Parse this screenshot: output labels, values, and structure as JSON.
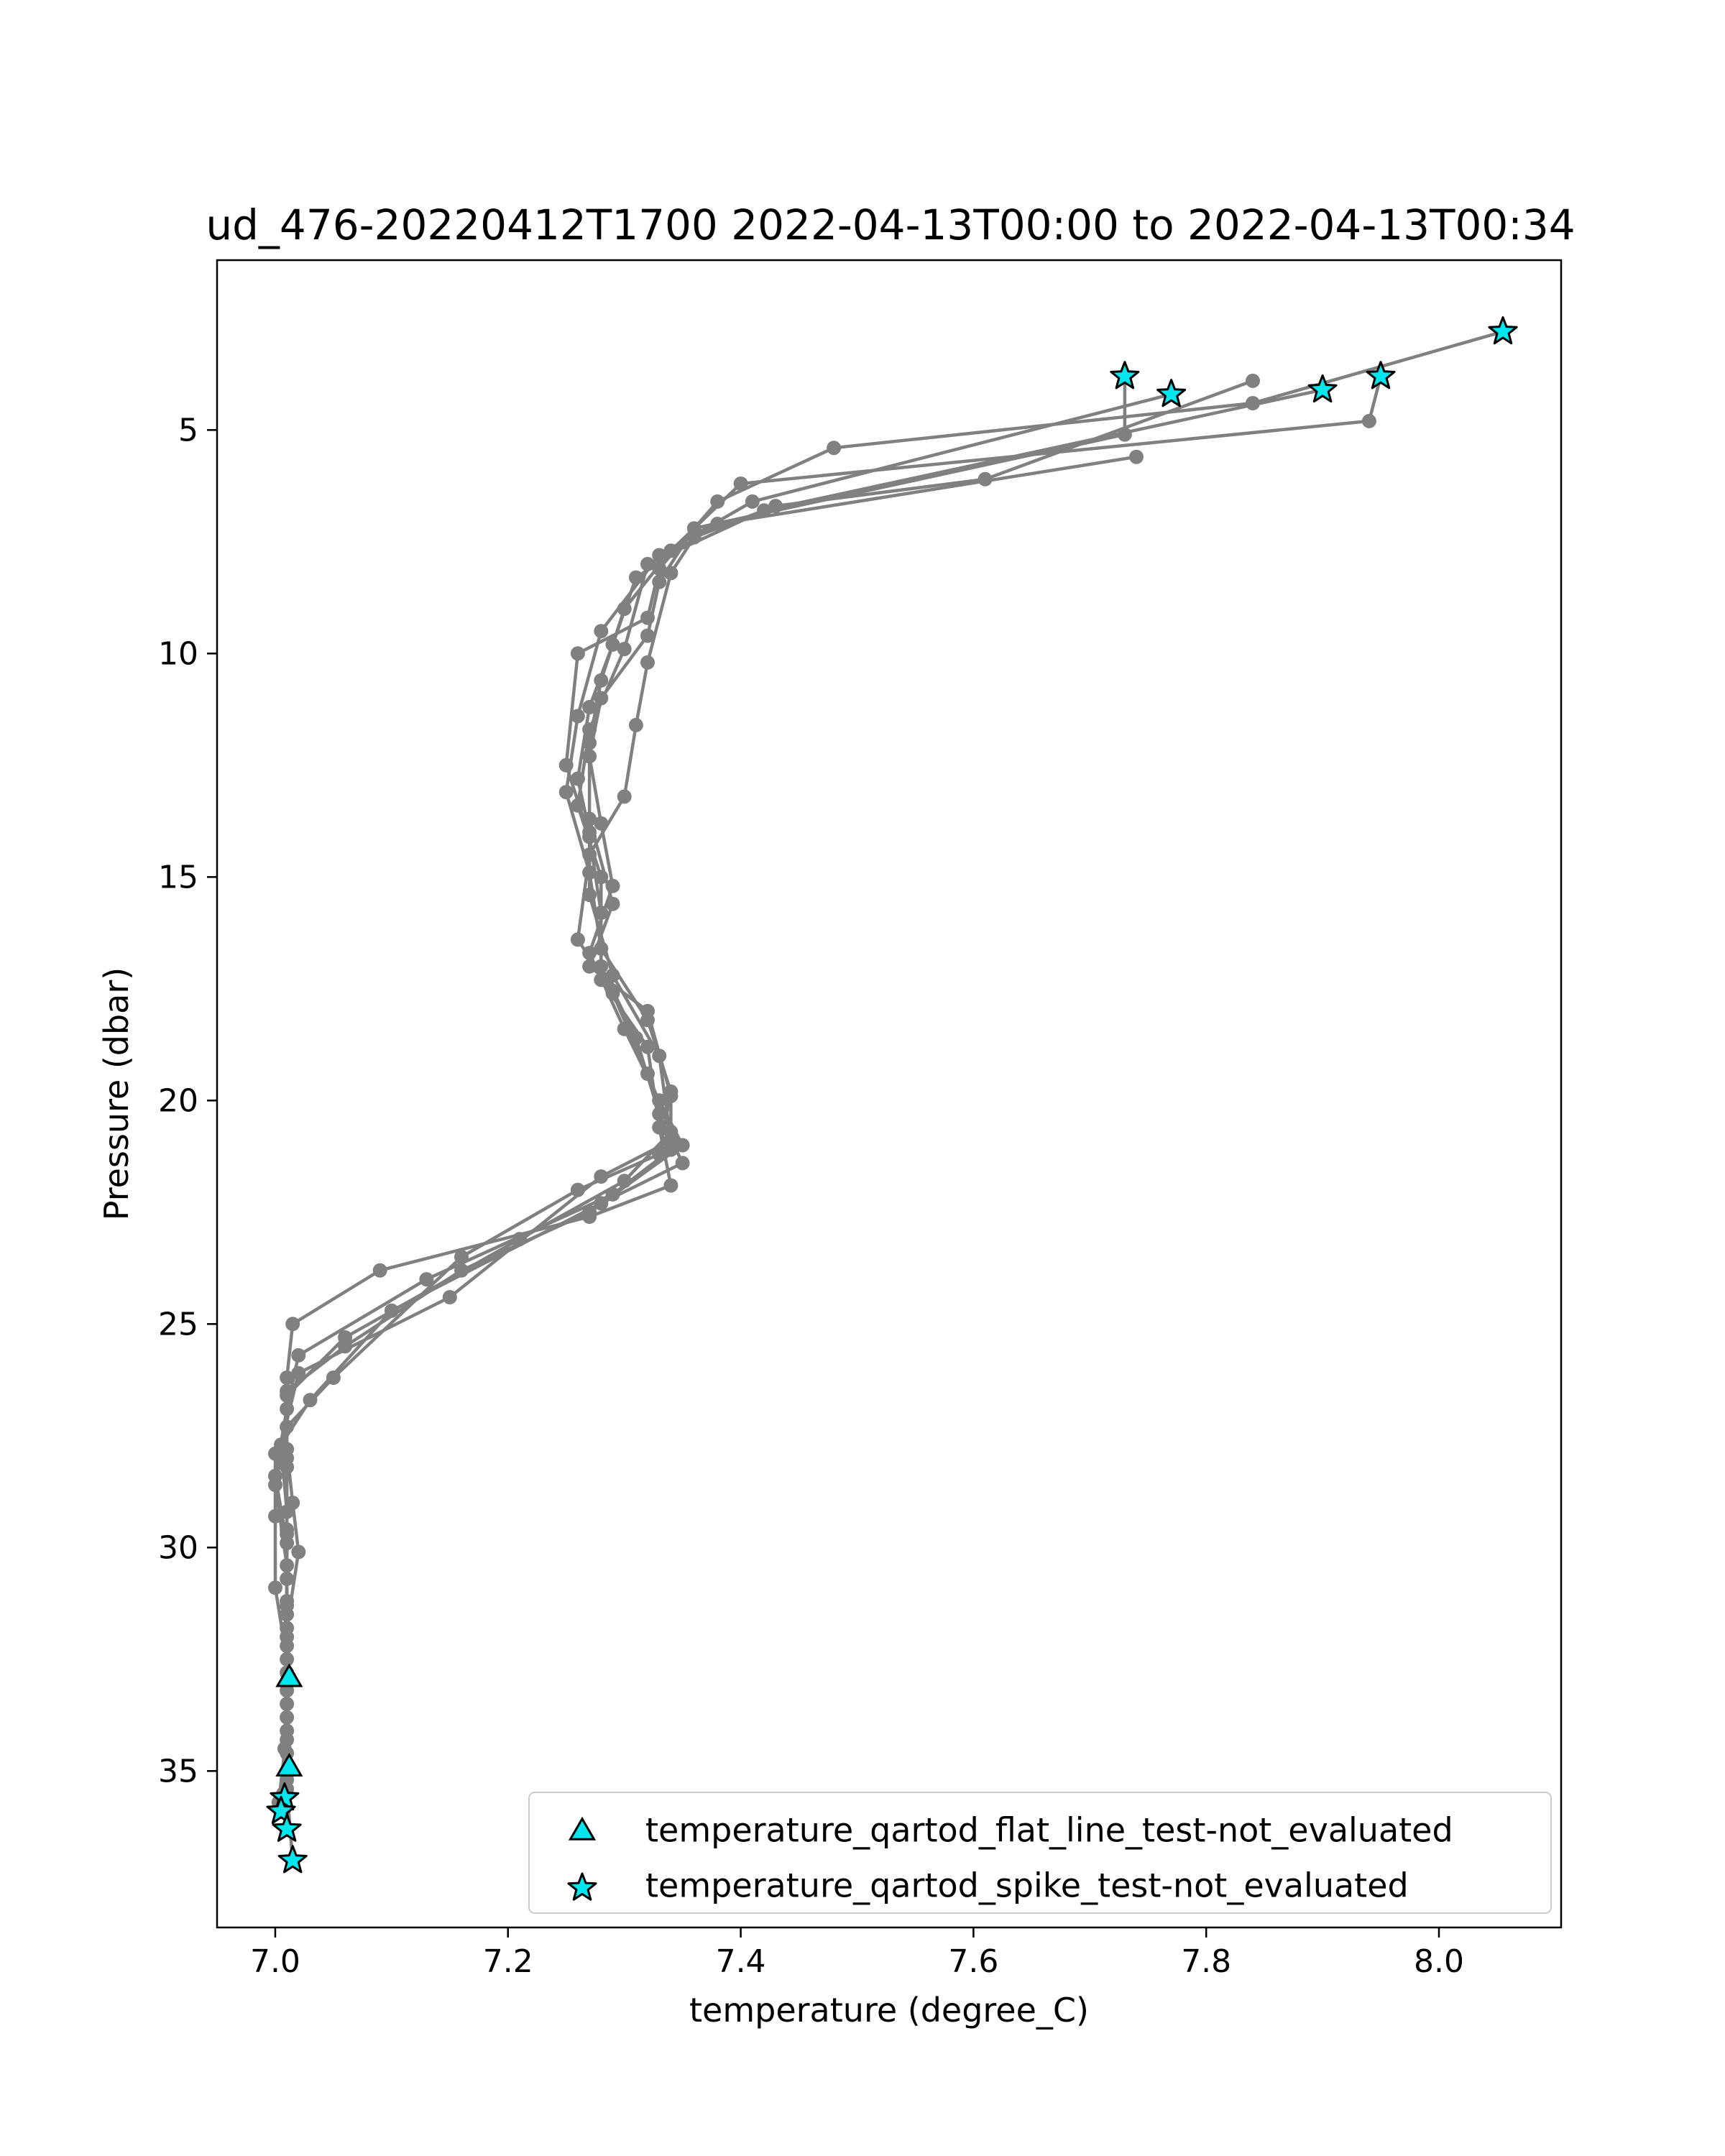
{
  "colors": {
    "line": "#808080",
    "marker_fill": "#00e5ee",
    "marker_edge": "#000000",
    "axes": "#000000",
    "background": "#ffffff"
  },
  "chart_data": {
    "type": "line",
    "title": "ud_476-20220412T1700 2022-04-13T00:00 to 2022-04-13T00:34",
    "xlabel": "temperature (degree_C)",
    "ylabel": "Pressure (dbar)",
    "xlim": [
      6.95,
      8.105
    ],
    "ylim": [
      38.5,
      1.2
    ],
    "y_inverted": true,
    "grid": false,
    "xticks": [
      7.0,
      7.2,
      7.4,
      7.6,
      7.8,
      8.0
    ],
    "xtick_labels": [
      "7.0",
      "7.2",
      "7.4",
      "7.6",
      "7.8",
      "8.0"
    ],
    "yticks": [
      5,
      10,
      15,
      20,
      25,
      30,
      35
    ],
    "ytick_labels": [
      "5",
      "10",
      "15",
      "20",
      "25",
      "30",
      "35"
    ],
    "legend_position": "lower-right",
    "legend": [
      {
        "label": "temperature_qartod_flat_line_test-not_evaluated",
        "marker": "triangle"
      },
      {
        "label": "temperature_qartod_spike_test-not_evaluated",
        "marker": "star"
      }
    ],
    "series": [
      {
        "points": [
          [
            7.73,
            3.8
          ],
          [
            7.73,
            5.1
          ],
          [
            7.36,
            7.2
          ],
          [
            7.33,
            8.4
          ],
          [
            7.32,
            9.6
          ],
          [
            7.28,
            11.0
          ],
          [
            7.27,
            12.3
          ],
          [
            7.28,
            13.8
          ],
          [
            7.29,
            15.2
          ],
          [
            7.27,
            16.7
          ],
          [
            7.3,
            18.4
          ],
          [
            7.33,
            20.0
          ],
          [
            7.35,
            21.0
          ],
          [
            7.27,
            22.5
          ],
          [
            7.16,
            23.8
          ],
          [
            7.06,
            25.5
          ],
          [
            7.01,
            26.5
          ],
          [
            7.01,
            28.0
          ],
          [
            7.01,
            29.6
          ],
          [
            7.01,
            31.2
          ],
          [
            7.012,
            32.9
          ],
          [
            7.008,
            34.5
          ],
          [
            7.005,
            35.9
          ]
        ]
      },
      {
        "points": [
          [
            7.77,
            4.2
          ],
          [
            7.41,
            6.6
          ],
          [
            7.33,
            7.8
          ],
          [
            7.28,
            9.5
          ],
          [
            7.26,
            11.4
          ],
          [
            7.25,
            13.1
          ],
          [
            7.27,
            14.9
          ],
          [
            7.28,
            16.6
          ],
          [
            7.32,
            18.2
          ],
          [
            7.34,
            19.8
          ],
          [
            7.33,
            21.2
          ],
          [
            7.26,
            22.0
          ],
          [
            7.16,
            23.5
          ],
          [
            7.05,
            26.2
          ],
          [
            7.01,
            27.3
          ],
          [
            7.0,
            28.6
          ],
          [
            7.01,
            30.4
          ],
          [
            7.01,
            32.0
          ],
          [
            7.01,
            33.5
          ],
          [
            7.012,
            35.0
          ],
          [
            7.01,
            36.3
          ]
        ]
      },
      {
        "points": [
          [
            7.9,
            4.1
          ],
          [
            7.42,
            6.8
          ],
          [
            7.32,
            8.0
          ],
          [
            7.3,
            9.9
          ],
          [
            7.27,
            11.7
          ],
          [
            7.26,
            13.4
          ],
          [
            7.28,
            15.0
          ],
          [
            7.28,
            17.0
          ],
          [
            7.31,
            18.6
          ],
          [
            7.33,
            20.3
          ],
          [
            7.35,
            21.4
          ],
          [
            7.28,
            22.3
          ],
          [
            7.1,
            24.7
          ],
          [
            7.03,
            26.7
          ],
          [
            7.0,
            27.9
          ],
          [
            7.0,
            29.3
          ],
          [
            7.0,
            30.9
          ],
          [
            7.01,
            32.5
          ],
          [
            7.01,
            34.1
          ],
          [
            7.003,
            35.7
          ]
        ]
      },
      {
        "points": [
          [
            7.95,
            3.8
          ],
          [
            7.94,
            4.8
          ],
          [
            7.4,
            6.2
          ],
          [
            7.34,
            7.7
          ],
          [
            7.3,
            9.0
          ],
          [
            7.28,
            10.6
          ],
          [
            7.27,
            12.0
          ],
          [
            7.27,
            13.7
          ],
          [
            7.29,
            15.6
          ],
          [
            7.27,
            17.0
          ],
          [
            7.32,
            18.0
          ],
          [
            7.34,
            19.9
          ],
          [
            7.34,
            21.1
          ],
          [
            7.29,
            22.1
          ],
          [
            7.13,
            24.0
          ],
          [
            7.02,
            25.7
          ],
          [
            7.01,
            26.9
          ],
          [
            7.0,
            28.4
          ],
          [
            7.01,
            29.9
          ],
          [
            7.01,
            31.5
          ],
          [
            7.01,
            33.2
          ],
          [
            7.01,
            35.4
          ],
          [
            7.015,
            37.0
          ]
        ]
      },
      {
        "points": [
          [
            8.055,
            2.8
          ],
          [
            7.84,
            4.4
          ],
          [
            7.48,
            5.4
          ],
          [
            7.38,
            6.6
          ],
          [
            7.33,
            8.1
          ],
          [
            7.32,
            9.2
          ],
          [
            7.26,
            10.0
          ],
          [
            7.25,
            12.5
          ],
          [
            7.27,
            14.1
          ],
          [
            7.28,
            15.8
          ],
          [
            7.28,
            17.3
          ],
          [
            7.32,
            18.8
          ],
          [
            7.33,
            20.6
          ],
          [
            7.34,
            21.9
          ],
          [
            7.27,
            22.6
          ],
          [
            7.09,
            23.8
          ],
          [
            7.015,
            25.0
          ],
          [
            7.01,
            26.2
          ],
          [
            7.01,
            27.8
          ],
          [
            7.015,
            29.0
          ],
          [
            7.02,
            30.1
          ],
          [
            7.01,
            31.8
          ],
          [
            7.01,
            33.0
          ],
          [
            7.01,
            34.6
          ],
          [
            7.008,
            35.6
          ]
        ]
      },
      {
        "points": [
          [
            7.84,
            3.9
          ],
          [
            7.61,
            6.1
          ],
          [
            7.43,
            6.7
          ],
          [
            7.36,
            7.4
          ],
          [
            7.34,
            8.2
          ],
          [
            7.32,
            10.2
          ],
          [
            7.31,
            11.6
          ],
          [
            7.3,
            13.2
          ],
          [
            7.27,
            14.5
          ],
          [
            7.26,
            16.4
          ],
          [
            7.29,
            17.6
          ],
          [
            7.32,
            19.4
          ],
          [
            7.34,
            20.7
          ],
          [
            7.3,
            21.8
          ],
          [
            7.21,
            23.1
          ],
          [
            7.06,
            25.3
          ],
          [
            7.01,
            26.6
          ],
          [
            7.01,
            28.2
          ],
          [
            7.01,
            29.7
          ],
          [
            7.01,
            31.3
          ],
          [
            7.01,
            32.8
          ],
          [
            7.01,
            34.3
          ],
          [
            7.007,
            35.5
          ]
        ]
      },
      {
        "points": [
          [
            7.74,
            5.6
          ],
          [
            7.38,
            7.1
          ],
          [
            7.31,
            8.3
          ],
          [
            7.29,
            9.8
          ],
          [
            7.27,
            11.2
          ],
          [
            7.26,
            12.8
          ],
          [
            7.27,
            14.0
          ],
          [
            7.27,
            15.4
          ],
          [
            7.29,
            17.2
          ],
          [
            7.33,
            19.0
          ],
          [
            7.34,
            20.9
          ],
          [
            7.28,
            21.7
          ],
          [
            7.15,
            24.4
          ],
          [
            7.02,
            26.1
          ],
          [
            7.005,
            27.7
          ],
          [
            7.01,
            29.2
          ],
          [
            7.01,
            30.7
          ],
          [
            7.01,
            32.2
          ],
          [
            7.01,
            33.8
          ],
          [
            7.01,
            35.2
          ]
        ]
      }
    ],
    "flat_line_flags": [
      [
        7.012,
        32.9
      ],
      [
        7.012,
        34.9
      ]
    ],
    "spike_flags": [
      [
        8.055,
        2.8
      ],
      [
        7.73,
        3.8
      ],
      [
        7.77,
        4.2
      ],
      [
        7.9,
        4.1
      ],
      [
        7.95,
        3.8
      ],
      [
        7.008,
        35.6
      ],
      [
        7.005,
        35.9
      ],
      [
        7.01,
        36.3
      ],
      [
        7.015,
        37.0
      ]
    ]
  }
}
